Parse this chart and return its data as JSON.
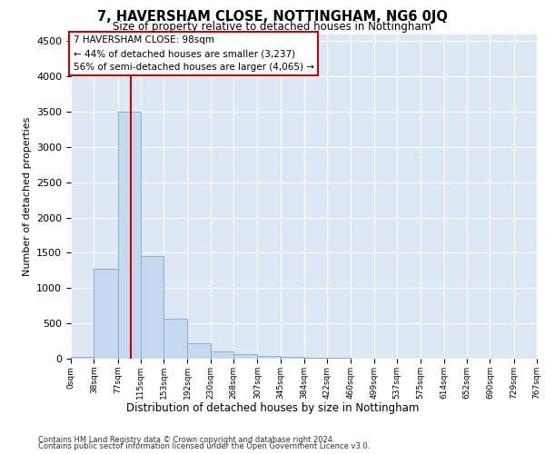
{
  "title": "7, HAVERSHAM CLOSE, NOTTINGHAM, NG6 0JQ",
  "subtitle": "Size of property relative to detached houses in Nottingham",
  "xlabel": "Distribution of detached houses by size in Nottingham",
  "ylabel": "Number of detached properties",
  "bin_edges": [
    0,
    38,
    77,
    115,
    153,
    192,
    230,
    268,
    307,
    345,
    384,
    422,
    460,
    499,
    537,
    575,
    614,
    652,
    690,
    729,
    767
  ],
  "bar_heights": [
    30,
    1270,
    3500,
    1450,
    560,
    215,
    105,
    65,
    40,
    25,
    15,
    10,
    5,
    2,
    0,
    1,
    0,
    0,
    0,
    0
  ],
  "bar_color": "#c5d8ed",
  "bar_edge_color": "#8bafd0",
  "property_size": 98,
  "annotation_line1": "7 HAVERSHAM CLOSE: 98sqm",
  "annotation_line2": "← 44% of detached houses are smaller (3,237)",
  "annotation_line3": "56% of semi-detached houses are larger (4,065) →",
  "annotation_box_color": "white",
  "annotation_box_edge_color": "#cc0000",
  "vline_color": "#cc0000",
  "ylim": [
    0,
    4600
  ],
  "yticks": [
    0,
    500,
    1000,
    1500,
    2000,
    2500,
    3000,
    3500,
    4000,
    4500
  ],
  "background_color": "#dde8f5",
  "grid_color": "#ffffff",
  "footer_line1": "Contains HM Land Registry data © Crown copyright and database right 2024.",
  "footer_line2": "Contains public sector information licensed under the Open Government Licence v3.0.",
  "tick_labels": [
    "0sqm",
    "38sqm",
    "77sqm",
    "115sqm",
    "153sqm",
    "192sqm",
    "230sqm",
    "268sqm",
    "307sqm",
    "345sqm",
    "384sqm",
    "422sqm",
    "460sqm",
    "499sqm",
    "537sqm",
    "575sqm",
    "614sqm",
    "652sqm",
    "690sqm",
    "729sqm",
    "767sqm"
  ]
}
